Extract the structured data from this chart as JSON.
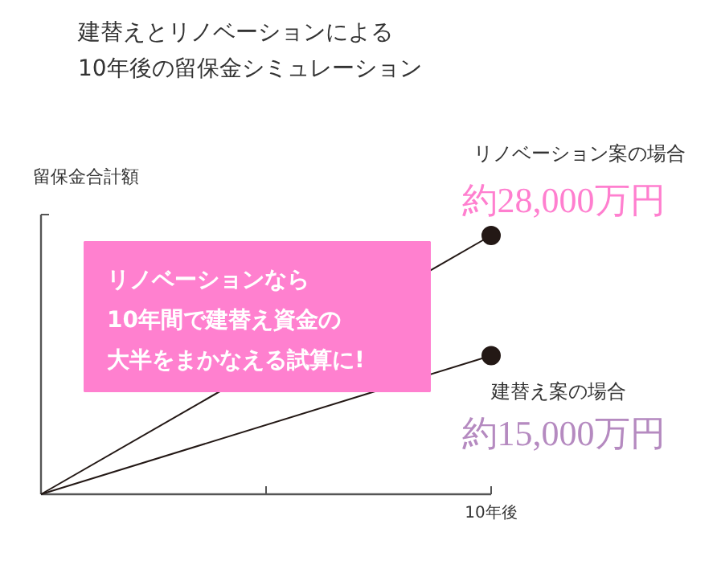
{
  "chart_data": {
    "type": "line",
    "title": "建替えとリノベーションによる\n10年後の留保金シミュレーション",
    "ylabel": "留保金合計額",
    "categories": [
      null,
      null
    ],
    "series": [
      {
        "name": "リノベーション案の場合",
        "color": "#231815",
        "values": [
          0,
          28000
        ],
        "value_labels": [
          null,
          "約28,000万円"
        ]
      },
      {
        "name": "建替え案の場合",
        "color": "#231815",
        "values": [
          0,
          15000
        ],
        "value_labels": [
          null,
          "約15,000万円"
        ]
      }
    ],
    "grid": false,
    "marker": "circle",
    "line_style": "solid",
    "annotations": [
      "10年後",
      "リノベーションなら",
      "10年間で建替え資金の",
      "大半をまかなえる試算に!"
    ]
  }
}
